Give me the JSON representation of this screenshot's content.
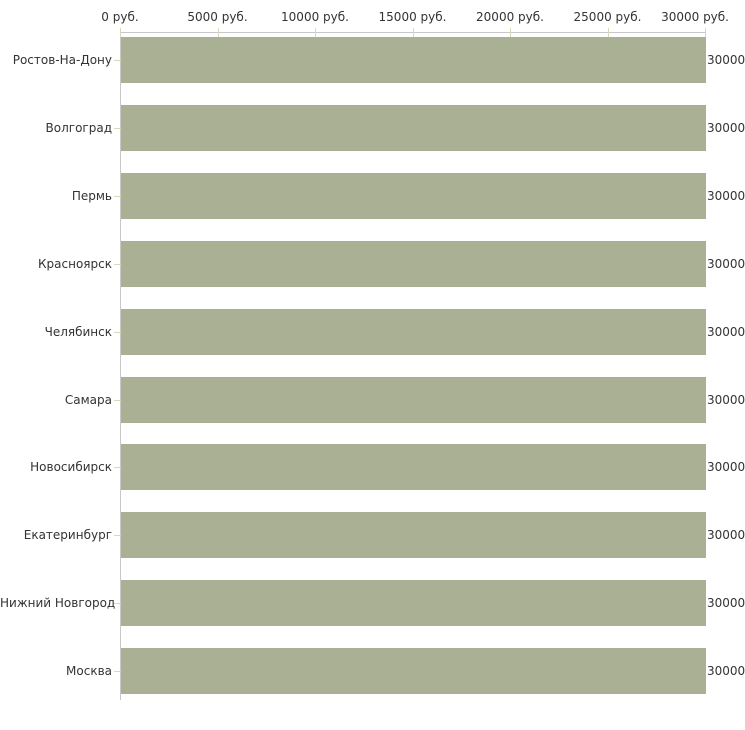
{
  "chart_data": {
    "type": "bar",
    "orientation": "horizontal",
    "title": "",
    "xlabel": "",
    "ylabel": "",
    "unit": "руб.",
    "xlim": [
      0,
      30000
    ],
    "grid": false,
    "legend": false,
    "categories": [
      "Ростов-На-Дону",
      "Волгоград",
      "Пермь",
      "Красноярск",
      "Челябинск",
      "Самара",
      "Новосибирск",
      "Екатеринбург",
      "Нижний Новгород",
      "Москва"
    ],
    "values": [
      30000,
      30000,
      30000,
      30000,
      30000,
      30000,
      30000,
      30000,
      30000,
      30000
    ],
    "value_labels": [
      "30000",
      "30000",
      "30000",
      "30000",
      "30000",
      "30000",
      "30000",
      "30000",
      "30000",
      "30000"
    ],
    "x_ticks": [
      "0 руб.",
      "5000 руб.",
      "10000 руб.",
      "15000 руб.",
      "20000 руб.",
      "25000 руб.",
      "30000 руб."
    ],
    "colors": {
      "bar": "#a9b094",
      "axis_line": "#c8c8c8",
      "tick_mark": "#d8d8ba",
      "text": "#333333",
      "background": "#ffffff"
    }
  }
}
